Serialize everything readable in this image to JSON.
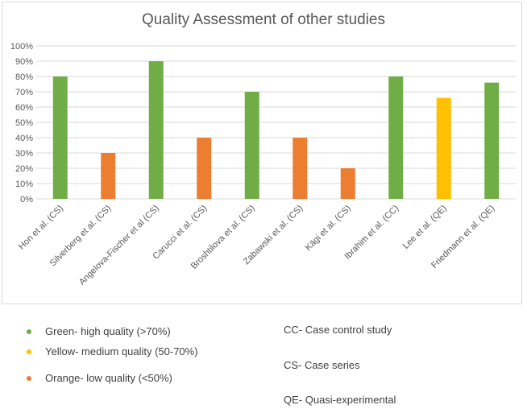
{
  "chart_data": {
    "type": "bar",
    "title": "Quality Assessment of other studies",
    "categories": [
      "Hon et al. (CS)",
      "Silverberg et al. (CS)",
      "Angelova-Fischer et al (CS)",
      "Carucci et al. (CS)",
      "Broshtilova et al. (CS)",
      "Zabawski et al. (CS)",
      "Kägi et al. (CS)",
      "Ibrahim et al. (CC)",
      "Lee et al. (QE)",
      "Friedmann et al. (QE)"
    ],
    "values": [
      80,
      30,
      90,
      40,
      70,
      40,
      20,
      80,
      66,
      76
    ],
    "bar_colors": [
      "#70ad47",
      "#ed7d31",
      "#70ad47",
      "#ed7d31",
      "#70ad47",
      "#ed7d31",
      "#ed7d31",
      "#70ad47",
      "#ffc000",
      "#70ad47"
    ],
    "ylim": [
      0,
      100
    ],
    "yticks": [
      "0%",
      "10%",
      "20%",
      "30%",
      "40%",
      "50%",
      "60%",
      "70%",
      "80%",
      "90%",
      "100%"
    ],
    "grid": true
  },
  "legend": [
    {
      "label": "Green- high quality (>70%)",
      "color": "#70ad47"
    },
    {
      "label": "Yellow- medium quality (50-70%)",
      "color": "#ffc000"
    },
    {
      "label": "Orange- low quality (<50%)",
      "color": "#ed7d31"
    }
  ],
  "abbreviations": [
    "CC- Case control study",
    "CS- Case series",
    "QE- Quasi-experimental"
  ]
}
